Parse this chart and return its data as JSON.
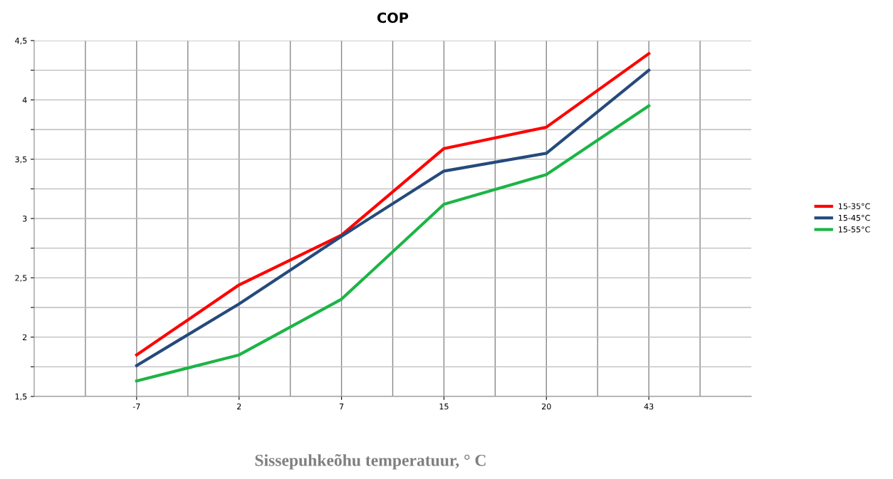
{
  "chart_data": {
    "type": "line",
    "title": "COP",
    "xlabel": "Sissepuhkeõhu temperatuur, ° C",
    "categories": [
      "-7",
      "2",
      "7",
      "15",
      "20",
      "43"
    ],
    "series": [
      {
        "name": "15-35°C",
        "color": "#ff0000",
        "values": [
          1.85,
          2.44,
          2.86,
          3.59,
          3.77,
          4.39
        ]
      },
      {
        "name": "15-45°C",
        "color": "#254a7c",
        "values": [
          1.76,
          2.28,
          2.85,
          3.4,
          3.55,
          4.25
        ]
      },
      {
        "name": "15-55°C",
        "color": "#1db446",
        "values": [
          1.63,
          1.85,
          2.32,
          3.12,
          3.37,
          3.95
        ]
      }
    ],
    "ylim": [
      1.5,
      4.5
    ],
    "yticks": [
      {
        "value": 1.5,
        "label": "1,5"
      },
      {
        "value": 1.75,
        "label": null
      },
      {
        "value": 2,
        "label": "2"
      },
      {
        "value": 2.25,
        "label": null
      },
      {
        "value": 2.5,
        "label": "2,5"
      },
      {
        "value": 2.75,
        "label": null
      },
      {
        "value": 3,
        "label": "3"
      },
      {
        "value": 3.25,
        "label": null
      },
      {
        "value": 3.5,
        "label": "3,5"
      },
      {
        "value": 3.75,
        "label": null
      },
      {
        "value": 4,
        "label": "4"
      },
      {
        "value": 4.25,
        "label": null
      },
      {
        "value": 4.5,
        "label": "4,5"
      }
    ],
    "grid": true,
    "legend": "right",
    "marker": "none",
    "line_style": "solid"
  }
}
